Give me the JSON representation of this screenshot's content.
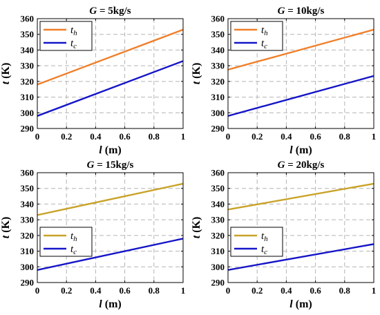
{
  "colors": {
    "th_first": "#f07f29",
    "th_second": "#c9a227",
    "tc": "#1515c8",
    "grid": "#b4b4b4",
    "axis": "#000000"
  },
  "chart_data": [
    {
      "type": "line",
      "title": "G = 5kg/s",
      "title_parts": [
        "G",
        " = 5kg/s"
      ],
      "xlabel": "l (m)",
      "xlabel_parts": [
        "l",
        " (m)"
      ],
      "ylabel": "t (K)",
      "ylabel_parts": [
        "t",
        " (K)"
      ],
      "xlim": [
        0,
        1
      ],
      "ylim": [
        290,
        360
      ],
      "xticks": [
        "0",
        "0.2",
        "0.4",
        "0.6",
        "0.8",
        "1"
      ],
      "yticks": [
        "290",
        "300",
        "310",
        "320",
        "330",
        "340",
        "350",
        "360"
      ],
      "grid": true,
      "legend_position": "top-left",
      "series": [
        {
          "name": "th",
          "label_base": "t",
          "label_sub": "h",
          "color": "#f07f29",
          "x": [
            0,
            1
          ],
          "y": [
            318,
            353
          ]
        },
        {
          "name": "tc",
          "label_base": "t",
          "label_sub": "c",
          "color": "#1515c8",
          "x": [
            0,
            1
          ],
          "y": [
            298,
            333
          ]
        }
      ]
    },
    {
      "type": "line",
      "title": "G = 10kg/s",
      "title_parts": [
        "G",
        " = 10kg/s"
      ],
      "xlabel": "l (m)",
      "xlabel_parts": [
        "l",
        " (m)"
      ],
      "ylabel": "t (K)",
      "ylabel_parts": [
        "t",
        " (K)"
      ],
      "xlim": [
        0,
        1
      ],
      "ylim": [
        290,
        360
      ],
      "xticks": [
        "0",
        "0.2",
        "0.4",
        "0.6",
        "0.8",
        "1"
      ],
      "yticks": [
        "290",
        "300",
        "310",
        "320",
        "330",
        "340",
        "350",
        "360"
      ],
      "grid": true,
      "legend_position": "top-left",
      "series": [
        {
          "name": "th",
          "label_base": "t",
          "label_sub": "h",
          "color": "#f07f29",
          "x": [
            0,
            1
          ],
          "y": [
            327.5,
            353
          ]
        },
        {
          "name": "tc",
          "label_base": "t",
          "label_sub": "c",
          "color": "#1515c8",
          "x": [
            0,
            1
          ],
          "y": [
            298,
            323.5
          ]
        }
      ]
    },
    {
      "type": "line",
      "title": "G = 15kg/s",
      "title_parts": [
        "G",
        " = 15kg/s"
      ],
      "xlabel": "l (m)",
      "xlabel_parts": [
        "l",
        " (m)"
      ],
      "ylabel": "t (K)",
      "ylabel_parts": [
        "t",
        " (K)"
      ],
      "xlim": [
        0,
        1
      ],
      "ylim": [
        290,
        360
      ],
      "xticks": [
        "0",
        "0.2",
        "0.4",
        "0.6",
        "0.8",
        "1"
      ],
      "yticks": [
        "290",
        "300",
        "310",
        "320",
        "330",
        "340",
        "350",
        "360"
      ],
      "grid": true,
      "legend_position": "bottom-left",
      "series": [
        {
          "name": "th",
          "label_base": "t",
          "label_sub": "h",
          "color": "#c9a227",
          "x": [
            0,
            1
          ],
          "y": [
            333,
            353
          ]
        },
        {
          "name": "tc",
          "label_base": "t",
          "label_sub": "c",
          "color": "#1515c8",
          "x": [
            0,
            1
          ],
          "y": [
            298,
            318
          ]
        }
      ]
    },
    {
      "type": "line",
      "title": "G = 20kg/s",
      "title_parts": [
        "G",
        " = 20kg/s"
      ],
      "xlabel": "l (m)",
      "xlabel_parts": [
        "l",
        " (m)"
      ],
      "ylabel": "t (K)",
      "ylabel_parts": [
        "t",
        " (K)"
      ],
      "xlim": [
        0,
        1
      ],
      "ylim": [
        290,
        360
      ],
      "xticks": [
        "0",
        "0.2",
        "0.4",
        "0.6",
        "0.8",
        "1"
      ],
      "yticks": [
        "290",
        "300",
        "310",
        "320",
        "330",
        "340",
        "350",
        "360"
      ],
      "grid": true,
      "legend_position": "bottom-left",
      "series": [
        {
          "name": "th",
          "label_base": "t",
          "label_sub": "h",
          "color": "#c9a227",
          "x": [
            0,
            1
          ],
          "y": [
            336.5,
            353
          ]
        },
        {
          "name": "tc",
          "label_base": "t",
          "label_sub": "c",
          "color": "#1515c8",
          "x": [
            0,
            1
          ],
          "y": [
            298,
            314.5
          ]
        }
      ]
    }
  ]
}
